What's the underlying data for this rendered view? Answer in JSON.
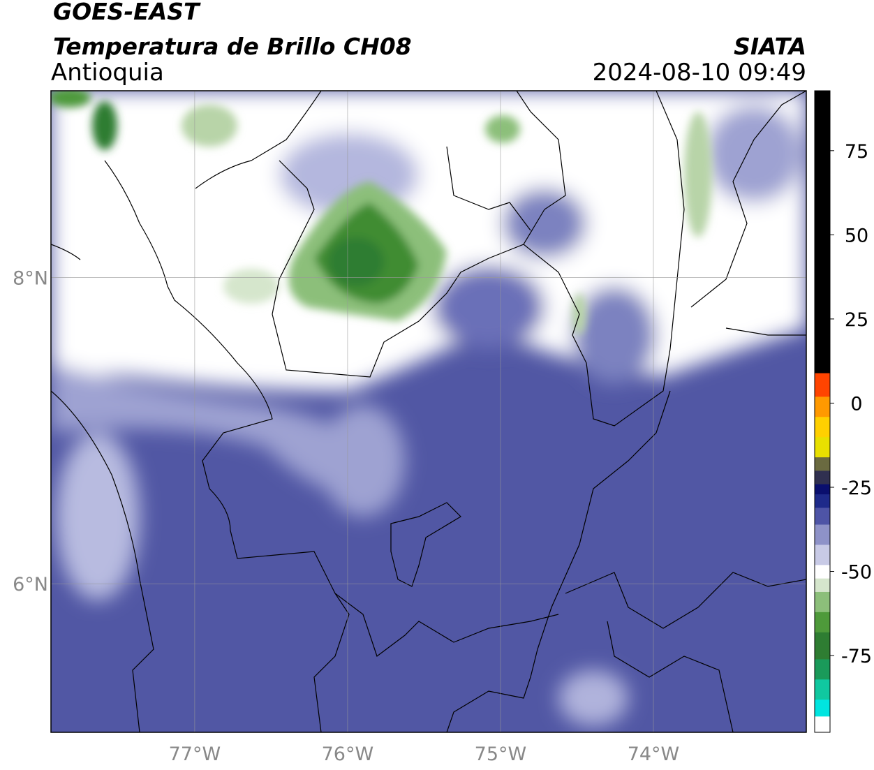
{
  "chart_data": {
    "type": "map",
    "title": "GOES-EAST",
    "subtitle": "Temperatura de Brillo CH08",
    "region": "Antioquia",
    "source": "SIATA",
    "timestamp": "2024-08-10 09:49",
    "xlim": [
      -77.94,
      -73.0
    ],
    "ylim": [
      5.03,
      9.22
    ],
    "xticks": [
      {
        "value": -77,
        "label": "77°W"
      },
      {
        "value": -76,
        "label": "76°W"
      },
      {
        "value": -75,
        "label": "75°W"
      },
      {
        "value": -74,
        "label": "74°W"
      }
    ],
    "yticks": [
      {
        "value": 8,
        "label": "8°N"
      },
      {
        "value": 6,
        "label": "6°N"
      }
    ],
    "grid": true,
    "colorbar": {
      "lim": [
        -97.8,
        92.8
      ],
      "ticks": [
        75,
        50,
        25,
        0,
        -25,
        -50,
        -75
      ],
      "bounds": [
        -97.8,
        -93,
        -88,
        -82,
        -76,
        -68,
        -62,
        -56,
        -52,
        -48,
        -42,
        -36,
        -31,
        -27,
        -24,
        -20,
        -16,
        -10,
        -4,
        2,
        9,
        92.8
      ],
      "colors": [
        "#ffffff",
        "#00e5e0",
        "#10c8a0",
        "#1a9a5a",
        "#2e7d32",
        "#4e9a3a",
        "#8cbf7a",
        "#d5e6cc",
        "#ffffff",
        "#c8cae6",
        "#8e92c8",
        "#4e54a6",
        "#1e2a8a",
        "#0a0f6e",
        "#303050",
        "#6a6a40",
        "#e8e000",
        "#ffd000",
        "#ff9900",
        "#ff4400",
        "#000000"
      ]
    }
  }
}
